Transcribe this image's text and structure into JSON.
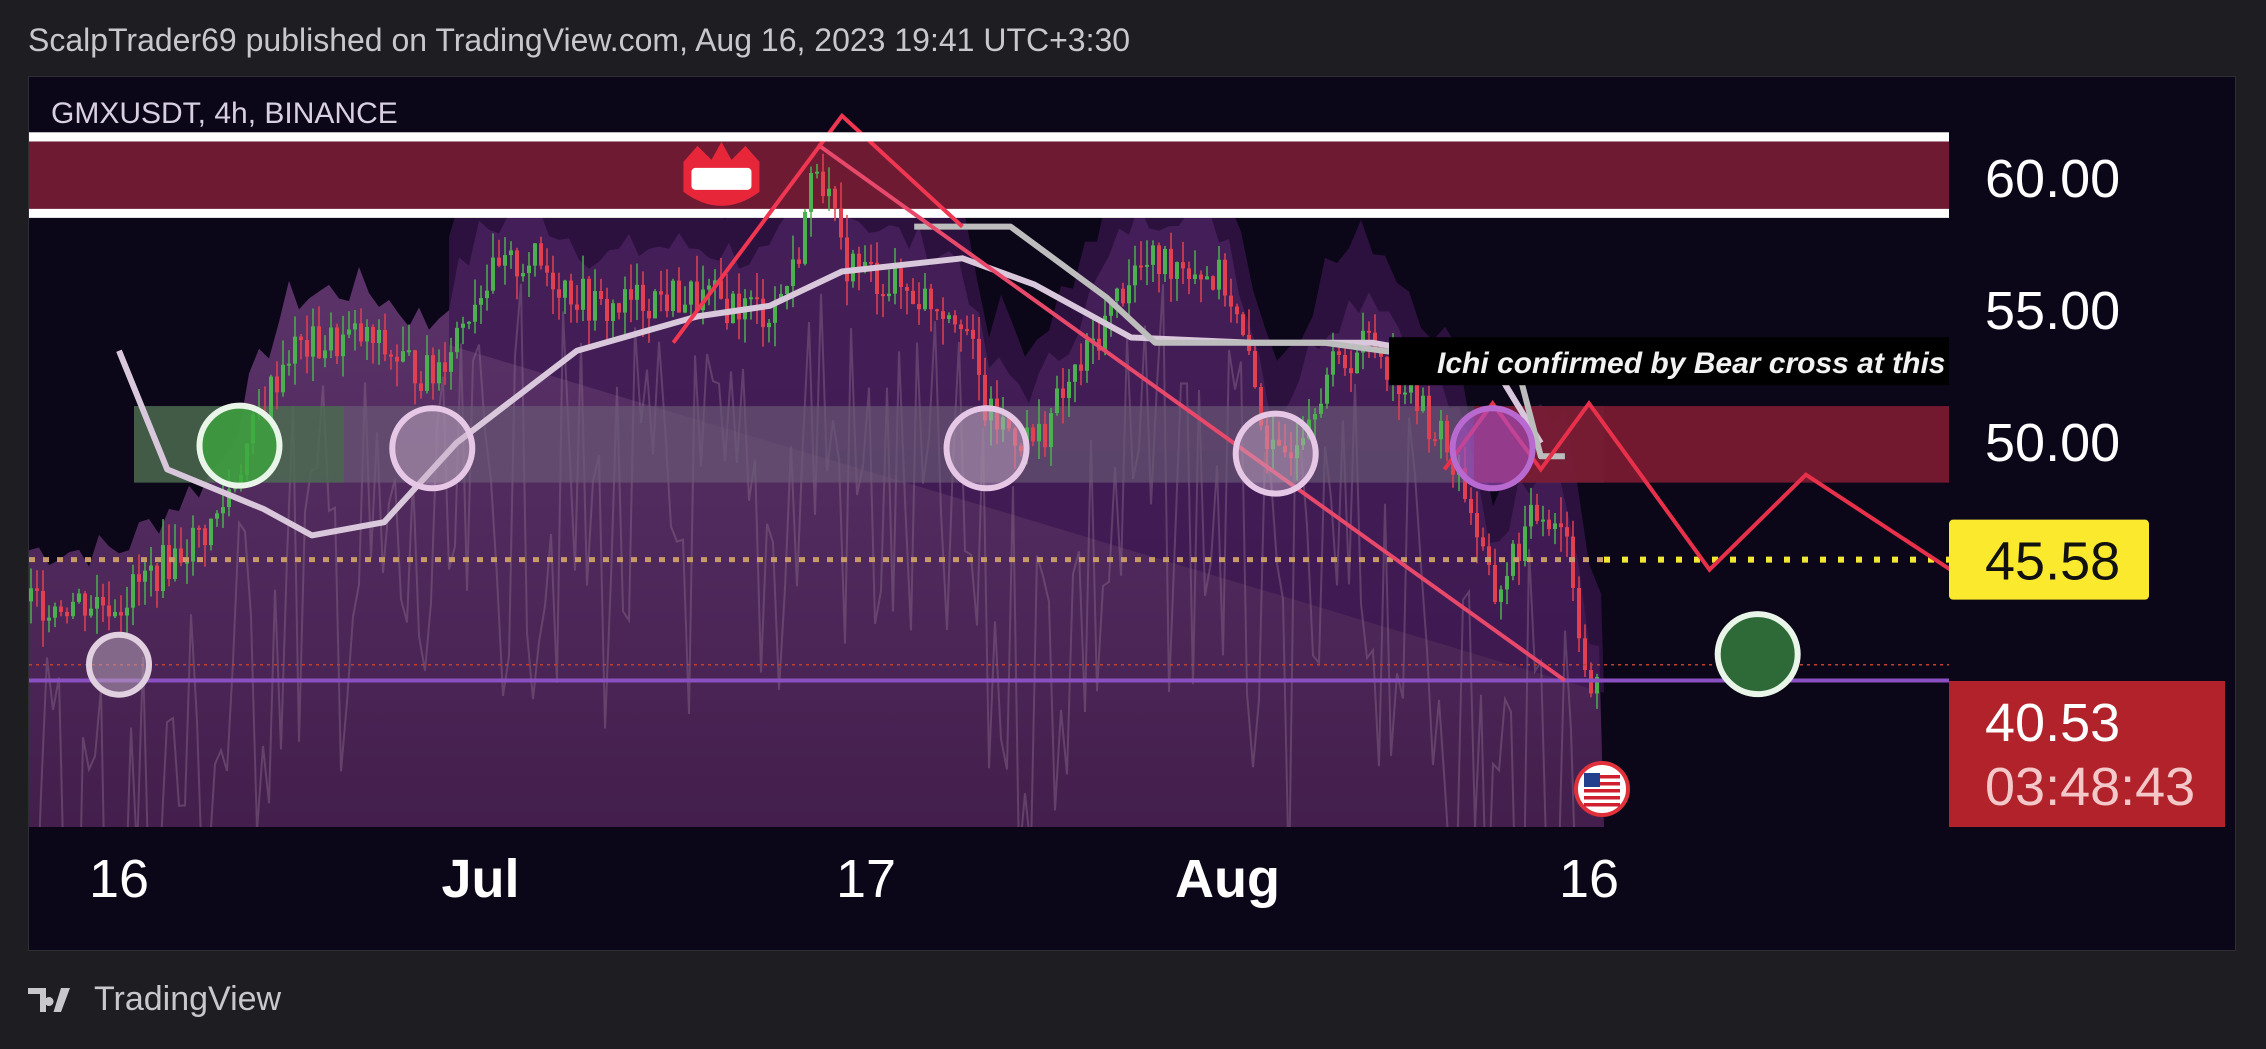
{
  "header": {
    "published": "ScalpTrader69 published on TradingView.com, Aug 16, 2023 19:41 UTC+3:30"
  },
  "footer": {
    "brand": "TradingView",
    "logo_icon": "tradingview-logo-icon"
  },
  "chart_data": {
    "type": "line",
    "symbol_label": "GMXUSDT, 4h, BINANCE",
    "annotation": "Ichi confirmed by Bear cross at this Z",
    "current_price": "40.53",
    "countdown": "03:48:43",
    "target_price": "45.58",
    "y_ticks": [
      "60.00",
      "55.00",
      "50.00"
    ],
    "x_ticks": [
      {
        "label": "16",
        "bold": false,
        "date": "2023-06-16"
      },
      {
        "label": "Jul",
        "bold": true,
        "date": "2023-07-01"
      },
      {
        "label": "17",
        "bold": false,
        "date": "2023-07-17"
      },
      {
        "label": "Aug",
        "bold": true,
        "date": "2023-08-01"
      },
      {
        "label": "16",
        "bold": false,
        "date": "2023-08-16"
      }
    ],
    "ylim": [
      35.45,
      63.87
    ],
    "xlim": [
      "2023-06-16",
      "2023-09-02"
    ],
    "zones": [
      {
        "name": "resistance",
        "y": [
          58.7,
          61.6
        ],
        "color": "#6e1a33"
      },
      {
        "name": "support",
        "y": [
          48.5,
          51.4
        ],
        "color": "#6a5a76"
      },
      {
        "name": "target",
        "y": [
          48.5,
          51.4
        ],
        "color": "#781a32"
      }
    ],
    "price_path": {
      "x": [
        "2023-06-16",
        "2023-06-20",
        "2023-06-23",
        "2023-06-26",
        "2023-06-29",
        "2023-07-01",
        "2023-07-03",
        "2023-07-06",
        "2023-07-08",
        "2023-07-10",
        "2023-07-13",
        "2023-07-14",
        "2023-07-15",
        "2023-07-16",
        "2023-07-18",
        "2023-07-21",
        "2023-07-22",
        "2023-07-24",
        "2023-07-26",
        "2023-07-28",
        "2023-07-30",
        "2023-08-01",
        "2023-08-03",
        "2023-08-05",
        "2023-08-07",
        "2023-08-10",
        "2023-08-11",
        "2023-08-12",
        "2023-08-13",
        "2023-08-14",
        "2023-08-15",
        "2023-08-16"
      ],
      "y": [
        44.0,
        47.0,
        53.5,
        54.0,
        52.5,
        56.0,
        57.0,
        55.0,
        55.5,
        55.5,
        55.0,
        56.5,
        61.0,
        57.0,
        56.0,
        55.0,
        51.0,
        50.0,
        53.0,
        56.5,
        57.0,
        56.0,
        49.0,
        52.5,
        54.0,
        50.0,
        48.0,
        44.0,
        46.0,
        47.5,
        47.0,
        40.53
      ]
    },
    "baseline_line": {
      "x": [
        "2023-06-16",
        "2023-06-18",
        "2023-06-22",
        "2023-06-24",
        "2023-06-27",
        "2023-06-30",
        "2023-07-05",
        "2023-07-10",
        "2023-07-13",
        "2023-07-16",
        "2023-07-21",
        "2023-07-24",
        "2023-07-28",
        "2023-08-02",
        "2023-08-07",
        "2023-08-12",
        "2023-08-14"
      ],
      "y": [
        53.5,
        49.0,
        47.5,
        46.5,
        47.0,
        50.0,
        53.5,
        54.8,
        55.2,
        56.5,
        57.0,
        56.0,
        54.0,
        53.8,
        53.8,
        53.0,
        50.0
      ]
    },
    "lagging_line": {
      "x": [
        "2023-07-19",
        "2023-07-23",
        "2023-07-27",
        "2023-07-29",
        "2023-08-01",
        "2023-08-05",
        "2023-08-09",
        "2023-08-13",
        "2023-08-14",
        "2023-08-15"
      ],
      "y": [
        58.2,
        58.2,
        55.5,
        53.8,
        53.8,
        53.8,
        53.3,
        53.0,
        49.5,
        49.5
      ]
    },
    "level_lines": [
      {
        "name": "target-dotted",
        "y": 45.58,
        "color": "#f2e833"
      },
      {
        "name": "support-base",
        "y": 41.0,
        "color": "#8a4fc0"
      }
    ],
    "trendline": {
      "x": [
        "2023-07-15",
        "2023-08-15"
      ],
      "y": [
        61.3,
        41.0
      ]
    },
    "wedge_line": {
      "x": [
        "2023-07-09",
        "2023-07-16",
        "2023-07-21"
      ],
      "y": [
        53.8,
        62.4,
        58.2
      ]
    },
    "projection": {
      "x": [
        "2023-08-10",
        "2023-08-12",
        "2023-08-14",
        "2023-08-16",
        "2023-08-21",
        "2023-08-25",
        "2023-08-31",
        "2023-09-01"
      ],
      "y": [
        49.0,
        51.5,
        49.0,
        51.5,
        45.2,
        48.8,
        45.2,
        46.0
      ]
    },
    "markers": [
      {
        "name": "green-circle",
        "x": "2023-06-21",
        "y": 49.9,
        "style": "green"
      },
      {
        "name": "pink-circle",
        "x": "2023-06-29",
        "y": 49.8,
        "style": "pink"
      },
      {
        "name": "pink-circle",
        "x": "2023-07-22",
        "y": 49.8,
        "style": "pink"
      },
      {
        "name": "pink-circle",
        "x": "2023-08-03",
        "y": 49.6,
        "style": "pink"
      },
      {
        "name": "purple-circle",
        "x": "2023-08-12",
        "y": 49.8,
        "style": "purple"
      },
      {
        "name": "grey-half-circle",
        "x": "2023-06-16",
        "y": 41.6,
        "style": "grey"
      },
      {
        "name": "target-circle",
        "x": "2023-08-23",
        "y": 42.0,
        "style": "target"
      }
    ],
    "colors": {
      "price_up": "#4caf50",
      "price_down": "#e04050",
      "cloud": "#6a2e6a",
      "current_price_tag": "#b2222b",
      "target_tag": "#fbe92d",
      "projection": "#e8304a"
    }
  }
}
